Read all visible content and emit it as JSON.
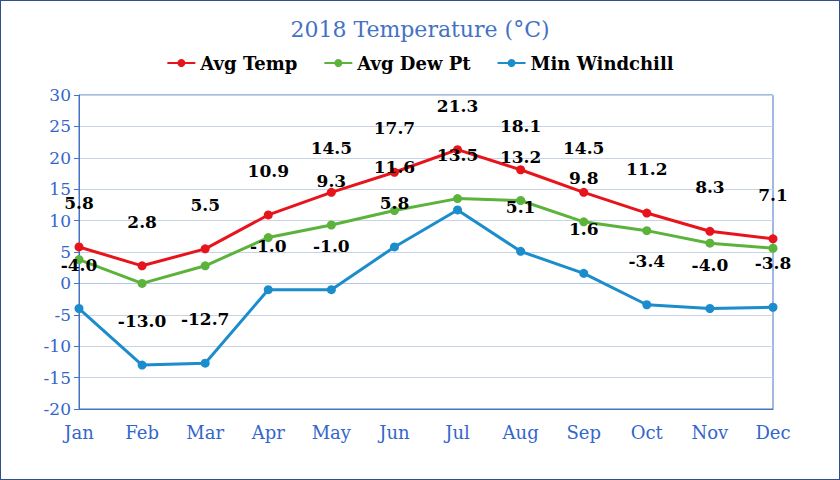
{
  "chart_data": {
    "type": "line",
    "title": "2018 Temperature (°C)",
    "categories": [
      "Jan",
      "Feb",
      "Mar",
      "Apr",
      "May",
      "Jun",
      "Jul",
      "Aug",
      "Sep",
      "Oct",
      "Nov",
      "Dec"
    ],
    "series": [
      {
        "name": "Avg Temp",
        "color": "#e8141b",
        "marker": "circle",
        "line_style": "solid",
        "values": [
          5.8,
          2.8,
          5.5,
          10.9,
          14.5,
          17.7,
          21.3,
          18.1,
          14.5,
          11.2,
          8.3,
          7.1
        ],
        "value_labels": [
          "5.8",
          "2.8",
          "5.5",
          "10.9",
          "14.5",
          "17.7",
          "21.3",
          "18.1",
          "14.5",
          "11.2",
          "8.3",
          "7.1"
        ]
      },
      {
        "name": "Avg Dew Pt",
        "color": "#5cb33c",
        "marker": "circle",
        "line_style": "solid",
        "values": [
          3.8,
          0.0,
          2.8,
          7.3,
          9.3,
          11.6,
          13.5,
          13.2,
          9.8,
          8.4,
          6.4,
          5.6
        ],
        "value_labels": [
          null,
          null,
          null,
          null,
          "9.3",
          "11.6",
          "13.5",
          "13.2",
          "9.8",
          null,
          null,
          null
        ]
      },
      {
        "name": "Min Windchill",
        "color": "#1b8ccc",
        "marker": "circle",
        "line_style": "solid",
        "values": [
          -4.0,
          -13.0,
          -12.7,
          -1.0,
          -1.0,
          5.8,
          11.7,
          5.1,
          1.6,
          -3.4,
          -4.0,
          -3.8
        ],
        "value_labels": [
          "-4.0",
          "-13.0",
          "-12.7",
          "-1.0",
          "-1.0",
          "5.8",
          null,
          "5.1",
          "1.6",
          "-3.4",
          "-4.0",
          "-3.8"
        ]
      }
    ],
    "ylim": [
      -20,
      30
    ],
    "yticks": [
      -20,
      -15,
      -10,
      -5,
      0,
      5,
      10,
      15,
      20,
      25,
      30
    ],
    "grid": true,
    "legend": "top",
    "data_labels": true
  }
}
